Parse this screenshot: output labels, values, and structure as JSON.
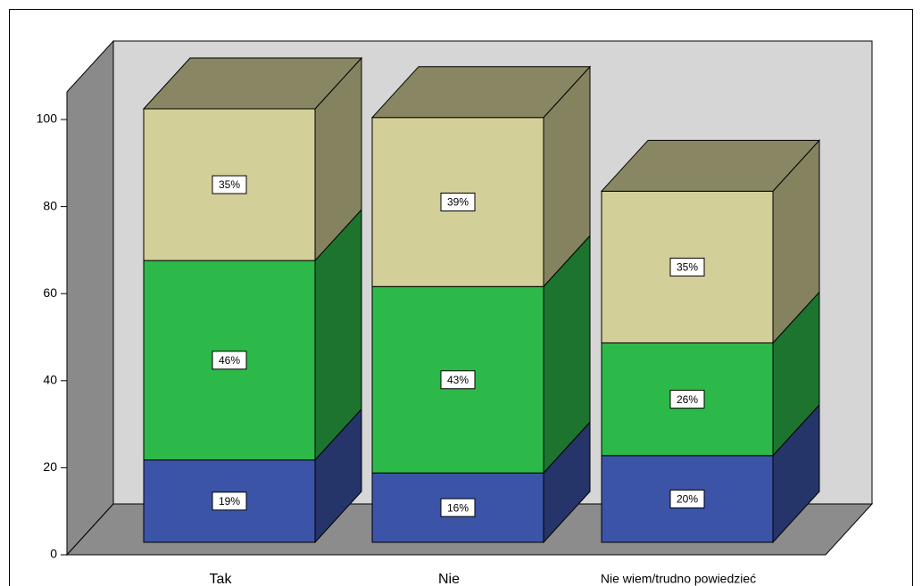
{
  "chart_data": {
    "type": "bar3d_stacked",
    "categories": [
      "Tak",
      "Nie",
      "Nie wiem/trudno powiedzieć"
    ],
    "series": [
      {
        "color": "#3b54a8",
        "values": [
          19,
          16,
          20
        ],
        "value_labels": [
          "19%",
          "16%",
          "20%"
        ]
      },
      {
        "color": "#2db84a",
        "values": [
          46,
          43,
          26
        ],
        "value_labels": [
          "46%",
          "43%",
          "26%"
        ]
      },
      {
        "color": "#d3cf98",
        "values": [
          35,
          39,
          35
        ],
        "value_labels": [
          "35%",
          "39%",
          "35%"
        ]
      }
    ],
    "ylim": [
      0,
      100
    ],
    "yticks": [
      0,
      20,
      40,
      60,
      80,
      100
    ]
  }
}
